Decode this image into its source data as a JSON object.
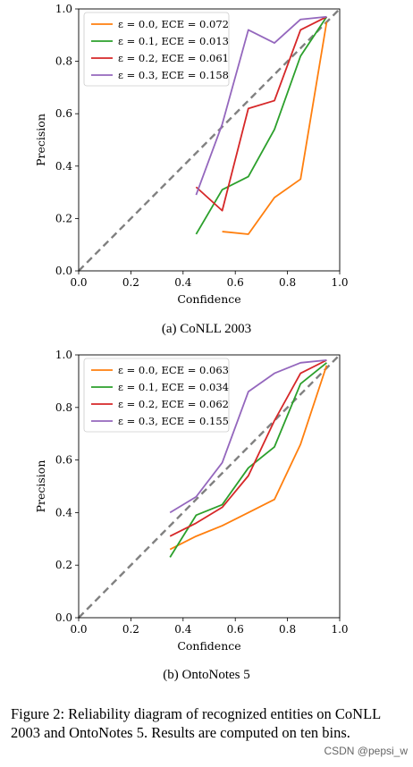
{
  "charts": [
    {
      "caption": "(a) CoNLL 2003",
      "chart_data": {
        "type": "line",
        "xlabel": "Confidence",
        "ylabel": "Precision",
        "xlim": [
          0.0,
          1.0
        ],
        "ylim": [
          0.0,
          1.0
        ],
        "xticks": [
          "0.0",
          "0.2",
          "0.4",
          "0.6",
          "0.8",
          "1.0"
        ],
        "yticks": [
          "0.0",
          "0.2",
          "0.4",
          "0.6",
          "0.8",
          "1.0"
        ],
        "legend_position": "top-left",
        "reference_line": {
          "style": "dashed",
          "color": "#808080",
          "points": [
            [
              0,
              0
            ],
            [
              1,
              1
            ]
          ]
        },
        "series": [
          {
            "name": "ε = 0.0, ECE = 0.072",
            "color": "#ff7f0e",
            "x": [
              0.55,
              0.65,
              0.75,
              0.85,
              0.95
            ],
            "y": [
              0.15,
              0.14,
              0.28,
              0.35,
              0.95
            ]
          },
          {
            "name": "ε = 0.1, ECE = 0.013",
            "color": "#2ca02c",
            "x": [
              0.45,
              0.55,
              0.65,
              0.75,
              0.85,
              0.95
            ],
            "y": [
              0.14,
              0.31,
              0.36,
              0.54,
              0.82,
              0.97
            ]
          },
          {
            "name": "ε = 0.2, ECE = 0.061",
            "color": "#d62728",
            "x": [
              0.45,
              0.55,
              0.65,
              0.75,
              0.85,
              0.95
            ],
            "y": [
              0.32,
              0.23,
              0.62,
              0.65,
              0.92,
              0.97
            ]
          },
          {
            "name": "ε = 0.3, ECE = 0.158",
            "color": "#9467bd",
            "x": [
              0.45,
              0.55,
              0.65,
              0.75,
              0.85,
              0.95
            ],
            "y": [
              0.29,
              0.56,
              0.92,
              0.87,
              0.96,
              0.97
            ]
          }
        ]
      }
    },
    {
      "caption": "(b) OntoNotes 5",
      "chart_data": {
        "type": "line",
        "xlabel": "Confidence",
        "ylabel": "Precision",
        "xlim": [
          0.0,
          1.0
        ],
        "ylim": [
          0.0,
          1.0
        ],
        "xticks": [
          "0.0",
          "0.2",
          "0.4",
          "0.6",
          "0.8",
          "1.0"
        ],
        "yticks": [
          "0.0",
          "0.2",
          "0.4",
          "0.6",
          "0.8",
          "1.0"
        ],
        "legend_position": "top-left",
        "reference_line": {
          "style": "dashed",
          "color": "#808080",
          "points": [
            [
              0,
              0
            ],
            [
              1,
              1
            ]
          ]
        },
        "series": [
          {
            "name": "ε = 0.0, ECE = 0.063",
            "color": "#ff7f0e",
            "x": [
              0.35,
              0.45,
              0.55,
              0.65,
              0.75,
              0.85,
              0.95
            ],
            "y": [
              0.26,
              0.31,
              0.35,
              0.4,
              0.45,
              0.66,
              0.96
            ]
          },
          {
            "name": "ε = 0.1, ECE = 0.034",
            "color": "#2ca02c",
            "x": [
              0.35,
              0.45,
              0.55,
              0.65,
              0.75,
              0.85,
              0.95
            ],
            "y": [
              0.23,
              0.39,
              0.43,
              0.57,
              0.65,
              0.89,
              0.97
            ]
          },
          {
            "name": "ε = 0.2, ECE = 0.062",
            "color": "#d62728",
            "x": [
              0.35,
              0.45,
              0.55,
              0.65,
              0.75,
              0.85,
              0.95
            ],
            "y": [
              0.31,
              0.36,
              0.42,
              0.54,
              0.75,
              0.93,
              0.98
            ]
          },
          {
            "name": "ε = 0.3, ECE = 0.155",
            "color": "#9467bd",
            "x": [
              0.35,
              0.45,
              0.55,
              0.65,
              0.75,
              0.85,
              0.95
            ],
            "y": [
              0.4,
              0.46,
              0.59,
              0.86,
              0.93,
              0.97,
              0.98
            ]
          }
        ]
      }
    }
  ],
  "figure_caption": "Figure 2: Reliability diagram of recognized entities on CoNLL 2003 and OntoNotes 5. Results are computed on ten bins.",
  "watermark": "CSDN @pepsi_w"
}
